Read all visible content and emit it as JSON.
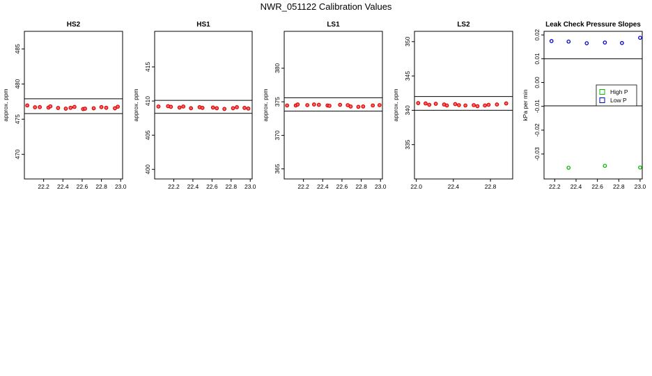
{
  "title": "NWR_051122  Calibration Values",
  "colors": {
    "cal_points": "#dd0000",
    "high_p": "#00bb00",
    "low_p": "#0000cc",
    "lines": "#000000"
  },
  "chart_data": [
    {
      "type": "scatter",
      "title": "HS2",
      "ylabel": "approx. ppm",
      "xlim": [
        22.0,
        23.02
      ],
      "ylim": [
        466.5,
        487.5
      ],
      "x_ticks": [
        22.2,
        22.4,
        22.6,
        22.8,
        23.0
      ],
      "x_tick_labels": [
        "22.2",
        "22.4",
        "22.6",
        "22.8",
        "23.0"
      ],
      "y_ticks": [
        470,
        475,
        480,
        485
      ],
      "y_tick_labels": [
        "470",
        "475",
        "480",
        "485"
      ],
      "hlines": [
        477.9,
        475.8
      ],
      "series": [
        {
          "x": [
            22.03,
            22.11,
            22.16,
            22.25,
            22.27,
            22.35,
            22.43,
            22.48,
            22.52,
            22.61,
            22.63,
            22.72,
            22.8,
            22.85,
            22.94,
            22.97
          ],
          "y": [
            476.96,
            476.7,
            476.72,
            476.65,
            476.83,
            476.6,
            476.5,
            476.62,
            476.75,
            476.45,
            476.5,
            476.55,
            476.72,
            476.62,
            476.55,
            476.78
          ]
        }
      ]
    },
    {
      "type": "scatter",
      "title": "HS1",
      "ylabel": "approx. ppm",
      "xlim": [
        22.0,
        23.02
      ],
      "ylim": [
        398.6,
        420.2
      ],
      "x_ticks": [
        22.2,
        22.4,
        22.6,
        22.8,
        23.0
      ],
      "x_tick_labels": [
        "22.2",
        "22.4",
        "22.6",
        "22.8",
        "23.0"
      ],
      "y_ticks": [
        400,
        405,
        410,
        415
      ],
      "y_tick_labels": [
        "400",
        "405",
        "410",
        "415"
      ],
      "hlines": [
        410.1,
        408.2
      ],
      "series": [
        {
          "x": [
            22.04,
            22.14,
            22.17,
            22.26,
            22.3,
            22.38,
            22.47,
            22.5,
            22.61,
            22.65,
            22.73,
            22.82,
            22.86,
            22.94,
            22.98
          ],
          "y": [
            409.2,
            409.25,
            409.15,
            409.05,
            409.2,
            408.95,
            409.1,
            409.0,
            409.05,
            408.95,
            408.85,
            408.95,
            409.1,
            409.0,
            408.9
          ]
        }
      ]
    },
    {
      "type": "scatter",
      "title": "LS1",
      "ylabel": "approx. ppm",
      "xlim": [
        22.0,
        23.02
      ],
      "ylim": [
        363.5,
        385.5
      ],
      "x_ticks": [
        22.2,
        22.4,
        22.6,
        22.8,
        23.0
      ],
      "x_tick_labels": [
        "22.2",
        "22.4",
        "22.6",
        "22.8",
        "23.0"
      ],
      "y_ticks": [
        365,
        370,
        375,
        380
      ],
      "y_tick_labels": [
        "365",
        "370",
        "375",
        "380"
      ],
      "hlines": [
        375.6,
        373.6
      ],
      "series": [
        {
          "x": [
            22.03,
            22.12,
            22.14,
            22.24,
            22.31,
            22.36,
            22.45,
            22.47,
            22.58,
            22.66,
            22.69,
            22.77,
            22.82,
            22.92,
            22.99
          ],
          "y": [
            374.45,
            374.45,
            374.6,
            374.5,
            374.6,
            374.55,
            374.45,
            374.4,
            374.55,
            374.5,
            374.3,
            374.25,
            374.3,
            374.45,
            374.5
          ]
        }
      ]
    },
    {
      "type": "scatter",
      "title": "LS2",
      "ylabel": "approx. ppm",
      "xlim": [
        21.98,
        23.04
      ],
      "ylim": [
        330.0,
        351.5
      ],
      "x_ticks": [
        22.0,
        22.4,
        22.8
      ],
      "x_tick_labels": [
        "22.0",
        "22.4",
        "22.8"
      ],
      "y_ticks": [
        335,
        340,
        345,
        350
      ],
      "y_tick_labels": [
        "335",
        "340",
        "345",
        "350"
      ],
      "hlines": [
        342.0,
        340.0
      ],
      "series": [
        {
          "x": [
            22.02,
            22.1,
            22.14,
            22.21,
            22.3,
            22.33,
            22.42,
            22.46,
            22.53,
            22.62,
            22.66,
            22.74,
            22.78,
            22.87,
            22.97
          ],
          "y": [
            341.05,
            341.0,
            340.8,
            340.95,
            340.85,
            340.7,
            340.9,
            340.75,
            340.7,
            340.75,
            340.6,
            340.7,
            340.8,
            340.85,
            341.0
          ]
        }
      ]
    },
    {
      "type": "scatter",
      "title": "Leak Check Pressure Slopes",
      "ylabel": "kPa per min",
      "xlim": [
        22.1,
        23.02
      ],
      "ylim": [
        -0.0405,
        0.0215
      ],
      "x_ticks": [
        22.2,
        22.4,
        22.6,
        22.8,
        23.0
      ],
      "x_tick_labels": [
        "22.2",
        "22.4",
        "22.6",
        "22.8",
        "23.0"
      ],
      "y_ticks": [
        -0.03,
        -0.02,
        -0.01,
        0.0,
        0.01,
        0.02
      ],
      "y_tick_labels": [
        "-0.03",
        "-0.02",
        "-0.01",
        "0.00",
        "0.01",
        "0.02"
      ],
      "hlines": [
        0.01,
        -0.0098
      ],
      "legend": {
        "position": "right",
        "entries": [
          "High P",
          "Low P"
        ]
      },
      "series": [
        {
          "name": "High P",
          "x": [
            22.33,
            22.67,
            23.0
          ],
          "y": [
            -0.0358,
            -0.035,
            -0.0357
          ]
        },
        {
          "name": "Low P",
          "x": [
            22.17,
            22.33,
            22.5,
            22.67,
            22.83,
            23.0
          ],
          "y": [
            0.0174,
            0.0172,
            0.0165,
            0.0168,
            0.0166,
            0.0188
          ]
        }
      ]
    }
  ]
}
